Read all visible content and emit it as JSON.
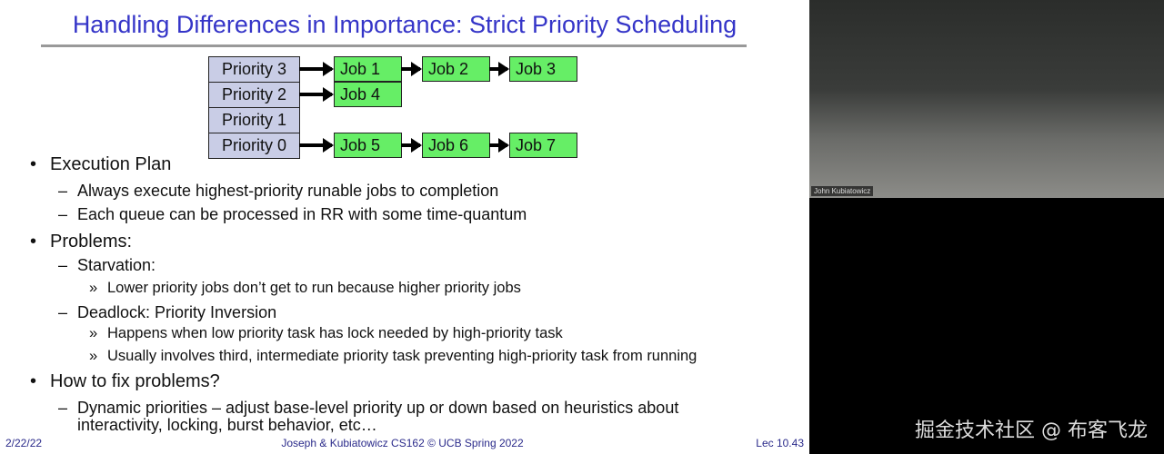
{
  "slide": {
    "title": "Handling Differences in Importance: Strict Priority Scheduling",
    "diagram": {
      "priorities": [
        "Priority 3",
        "Priority 2",
        "Priority 1",
        "Priority 0"
      ],
      "queues": [
        [
          "Job 1",
          "Job 2",
          "Job 3"
        ],
        [
          "Job 4"
        ],
        [],
        [
          "Job 5",
          "Job 6",
          "Job 7"
        ]
      ]
    },
    "bullets": [
      {
        "level": 1,
        "marker": "•",
        "text": "Execution Plan"
      },
      {
        "level": 2,
        "marker": "–",
        "text": "Always execute highest-priority runable jobs to completion"
      },
      {
        "level": 2,
        "marker": "–",
        "text": "Each queue can be processed in RR with some time-quantum"
      },
      {
        "level": 1,
        "marker": "•",
        "text": "Problems:"
      },
      {
        "level": 2,
        "marker": "–",
        "text": "Starvation:"
      },
      {
        "level": 3,
        "marker": "»",
        "text": "Lower priority jobs don’t get to run because higher priority jobs"
      },
      {
        "level": 2,
        "marker": "–",
        "text": "Deadlock: Priority Inversion"
      },
      {
        "level": 3,
        "marker": "»",
        "text": "Happens when low priority task has lock needed by high-priority task"
      },
      {
        "level": 3,
        "marker": "»",
        "text": "Usually involves third, intermediate priority task preventing high-priority task from running"
      },
      {
        "level": 1,
        "marker": "•",
        "text": "How to fix problems?"
      },
      {
        "level": 2,
        "marker": "–",
        "text": "Dynamic priorities – adjust base-level priority up or down based on heuristics about"
      },
      {
        "level": 2,
        "marker": "",
        "text": "interactivity, locking, burst behavior, etc…"
      }
    ],
    "footer": {
      "date": "2/22/22",
      "center": "Joseph & Kubiatowicz CS162 © UCB Spring 2022",
      "page": "Lec 10.43"
    }
  },
  "video": {
    "speaker_name": "John Kubiatowicz"
  },
  "watermark": "掘金技术社区 @ 布客飞龙"
}
